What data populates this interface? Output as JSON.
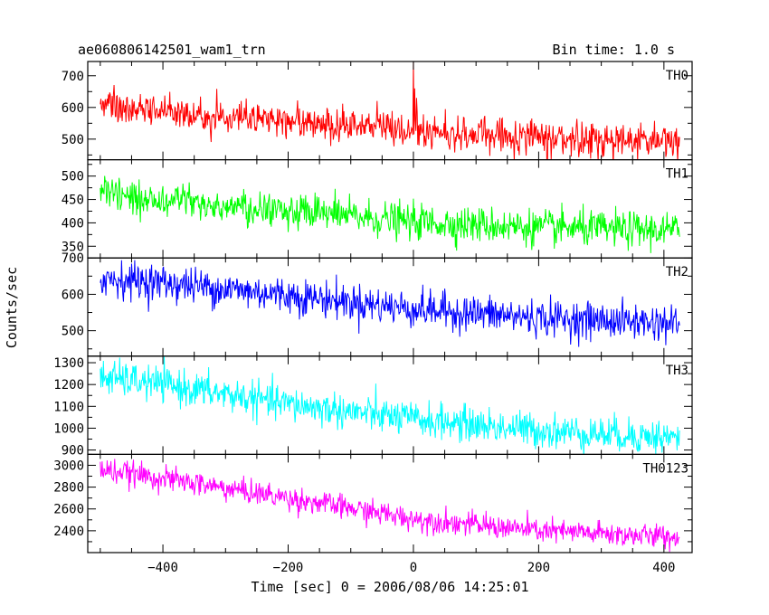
{
  "chart_data": {
    "type": "line",
    "title": "ae060806142501_wam1_trn",
    "subtitle": "Bin time: 1.0 s",
    "xlabel": "Time [sec] 0 = 2006/08/06 14:25:01",
    "ylabel": "Counts/sec",
    "xlim": [
      -520,
      445
    ],
    "xticks": [
      -400,
      -200,
      0,
      200,
      400
    ],
    "x_range": [
      -500,
      425
    ],
    "bin_time": 1.0,
    "grid": false,
    "panels": [
      {
        "name": "TH0",
        "color": "#ff0000",
        "ylim": [
          435,
          745
        ],
        "yticks": [
          500,
          600,
          700
        ],
        "trend": [
          [
            -500,
            615
          ],
          [
            -440,
            595
          ],
          [
            -300,
            570
          ],
          [
            -100,
            548
          ],
          [
            -2,
            532
          ],
          [
            60,
            518
          ],
          [
            200,
            505
          ],
          [
            425,
            495
          ]
        ],
        "noise": 27,
        "spikes": [
          [
            0,
            745
          ],
          [
            2,
            660
          ],
          [
            5,
            630
          ]
        ]
      },
      {
        "name": "TH1",
        "color": "#00ff00",
        "ylim": [
          325,
          535
        ],
        "yticks": [
          350,
          400,
          450,
          500
        ],
        "trend": [
          [
            -500,
            462
          ],
          [
            -400,
            448
          ],
          [
            -200,
            425
          ],
          [
            0,
            402
          ],
          [
            200,
            390
          ],
          [
            425,
            383
          ]
        ],
        "noise": 19,
        "spikes": []
      },
      {
        "name": "TH2",
        "color": "#0000ff",
        "ylim": [
          430,
          700
        ],
        "yticks": [
          500,
          600,
          700
        ],
        "trend": [
          [
            -500,
            645
          ],
          [
            -400,
            632
          ],
          [
            -200,
            598
          ],
          [
            0,
            560
          ],
          [
            200,
            535
          ],
          [
            425,
            520
          ]
        ],
        "noise": 25,
        "spikes": []
      },
      {
        "name": "TH3",
        "color": "#00ffff",
        "ylim": [
          880,
          1330
        ],
        "yticks": [
          900,
          1000,
          1100,
          1200,
          1300
        ],
        "trend": [
          [
            -500,
            1235
          ],
          [
            -400,
            1200
          ],
          [
            -200,
            1110
          ],
          [
            0,
            1040
          ],
          [
            200,
            990
          ],
          [
            425,
            955
          ]
        ],
        "noise": 40,
        "spikes": []
      },
      {
        "name": "TH0123",
        "color": "#ff00ff",
        "ylim": [
          2200,
          3100
        ],
        "yticks": [
          2400,
          2600,
          2800,
          3000
        ],
        "trend": [
          [
            -500,
            2960
          ],
          [
            -400,
            2880
          ],
          [
            -200,
            2700
          ],
          [
            0,
            2510
          ],
          [
            200,
            2400
          ],
          [
            425,
            2340
          ]
        ],
        "noise": 55,
        "spikes": []
      }
    ]
  }
}
